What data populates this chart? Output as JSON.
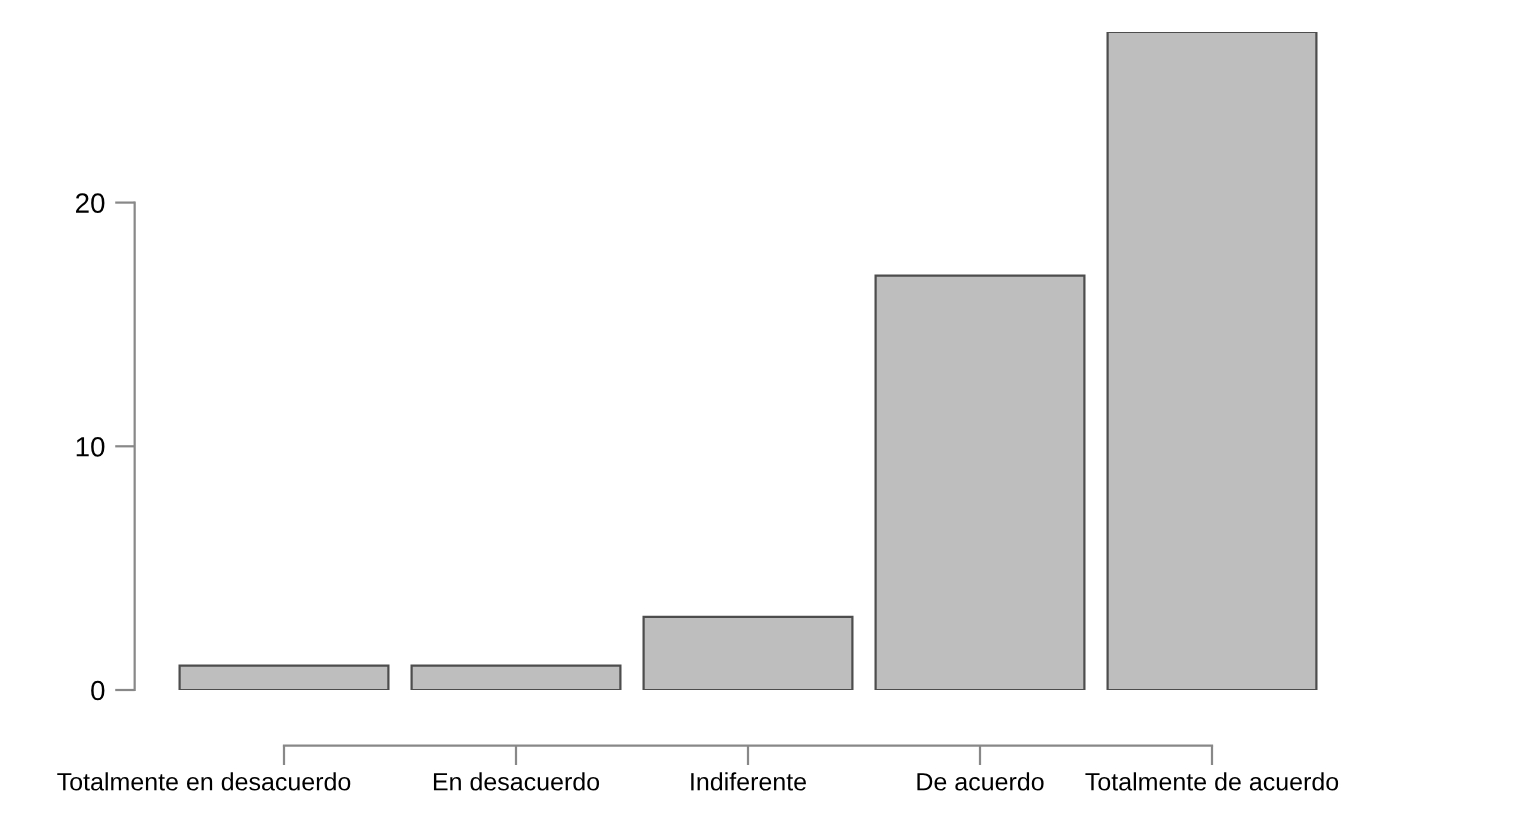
{
  "chart_data": {
    "type": "bar",
    "categories": [
      "Totalmente en desacuerdo",
      "En desacuerdo",
      "Indiferente",
      "De acuerdo",
      "Totalmente de acuerdo"
    ],
    "values": [
      1,
      1,
      3,
      17,
      27
    ],
    "color": "#bebebe",
    "ylim": [
      0,
      27
    ],
    "yticks": [
      0,
      10,
      20
    ],
    "grid": false
  }
}
